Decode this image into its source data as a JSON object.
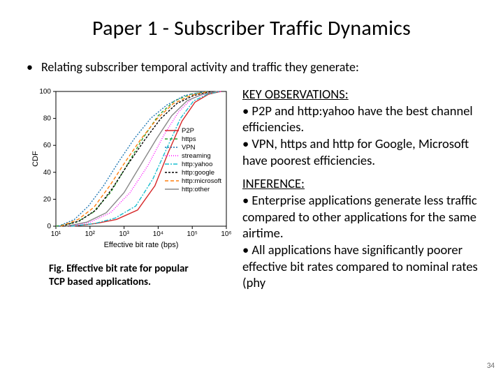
{
  "title": "Paper 1 - Subscriber Traffic Dynamics",
  "top_bullet": "Relating subscriber temporal activity and traffic they generate:",
  "caption": "Fig. Effective bit rate for popular TCP based applications.",
  "observations": {
    "heading": "KEY OBSERVATIONS:",
    "line1": "• P2P and http:yahoo have the best channel efficiencies.",
    "line2": "• VPN, https and http for Google, Microsoft  have poorest efficiencies."
  },
  "inference": {
    "heading": "INFERENCE:",
    "line1": "• Enterprise applications generate less traffic compared to other applications for the same airtime.",
    "line2": "• All applications have significantly poorer effective bit rates compared to nominal rates (phy"
  },
  "pagenum": "34",
  "chart": {
    "type": "line",
    "xlabel": "Effective bit rate (bps)",
    "ylabel": "CDF",
    "x_log": true,
    "xlim": [
      10,
      1000000
    ],
    "ylim": [
      0,
      100
    ],
    "x_ticks": [
      10,
      100,
      1000,
      10000,
      100000,
      1000000
    ],
    "x_ticklabels": [
      "10¹",
      "10²",
      "10³",
      "10⁴",
      "10⁵",
      "10⁶"
    ],
    "y_ticks": [
      0,
      20,
      40,
      60,
      80,
      100
    ],
    "background_color": "#ffffff",
    "axis_color": "#000000",
    "series": [
      {
        "name": "P2P",
        "color": "#d62728",
        "dash": "none",
        "points": [
          [
            30,
            0
          ],
          [
            150,
            2
          ],
          [
            600,
            5
          ],
          [
            2500,
            12
          ],
          [
            8000,
            30
          ],
          [
            20000,
            55
          ],
          [
            50000,
            78
          ],
          [
            120000,
            92
          ],
          [
            300000,
            98
          ],
          [
            700000,
            100
          ]
        ]
      },
      {
        "name": "https",
        "color": "#2ca02c",
        "dash": "4 3",
        "points": [
          [
            10,
            0
          ],
          [
            40,
            3
          ],
          [
            120,
            10
          ],
          [
            400,
            25
          ],
          [
            1200,
            45
          ],
          [
            3500,
            65
          ],
          [
            10000,
            82
          ],
          [
            30000,
            93
          ],
          [
            90000,
            98
          ],
          [
            300000,
            100
          ]
        ]
      },
      {
        "name": "VPN",
        "color": "#1f77b4",
        "dash": "2 2",
        "points": [
          [
            12,
            0
          ],
          [
            35,
            5
          ],
          [
            90,
            15
          ],
          [
            250,
            30
          ],
          [
            700,
            48
          ],
          [
            2000,
            65
          ],
          [
            6000,
            80
          ],
          [
            18000,
            90
          ],
          [
            60000,
            97
          ],
          [
            250000,
            100
          ]
        ]
      },
      {
        "name": "streaming",
        "color": "#ff00ff",
        "dash": "1 2",
        "points": [
          [
            25,
            0
          ],
          [
            100,
            3
          ],
          [
            400,
            10
          ],
          [
            1500,
            25
          ],
          [
            5000,
            45
          ],
          [
            15000,
            68
          ],
          [
            40000,
            85
          ],
          [
            100000,
            95
          ],
          [
            300000,
            99
          ],
          [
            700000,
            100
          ]
        ]
      },
      {
        "name": "http:yahoo",
        "color": "#17becf",
        "dash": "6 2 2 2",
        "points": [
          [
            28,
            0
          ],
          [
            140,
            2
          ],
          [
            550,
            6
          ],
          [
            2200,
            15
          ],
          [
            7000,
            35
          ],
          [
            18000,
            58
          ],
          [
            45000,
            80
          ],
          [
            110000,
            93
          ],
          [
            280000,
            98
          ],
          [
            650000,
            100
          ]
        ]
      },
      {
        "name": "http:google",
        "color": "#000000",
        "dash": "3 2",
        "points": [
          [
            15,
            0
          ],
          [
            50,
            4
          ],
          [
            150,
            12
          ],
          [
            450,
            28
          ],
          [
            1300,
            46
          ],
          [
            4000,
            64
          ],
          [
            12000,
            80
          ],
          [
            35000,
            91
          ],
          [
            110000,
            97
          ],
          [
            350000,
            100
          ]
        ]
      },
      {
        "name": "http:microsoft",
        "color": "#ff7f0e",
        "dash": "5 3",
        "points": [
          [
            14,
            0
          ],
          [
            45,
            5
          ],
          [
            130,
            14
          ],
          [
            380,
            30
          ],
          [
            1100,
            48
          ],
          [
            3200,
            65
          ],
          [
            9500,
            80
          ],
          [
            28000,
            91
          ],
          [
            90000,
            97
          ],
          [
            300000,
            100
          ]
        ]
      },
      {
        "name": "http:other",
        "color": "#888888",
        "dash": "none",
        "points": [
          [
            20,
            0
          ],
          [
            80,
            3
          ],
          [
            300,
            10
          ],
          [
            1000,
            25
          ],
          [
            3000,
            45
          ],
          [
            9000,
            65
          ],
          [
            25000,
            82
          ],
          [
            70000,
            93
          ],
          [
            200000,
            98
          ],
          [
            550000,
            100
          ]
        ]
      }
    ],
    "legend_pos": "right-inside"
  }
}
